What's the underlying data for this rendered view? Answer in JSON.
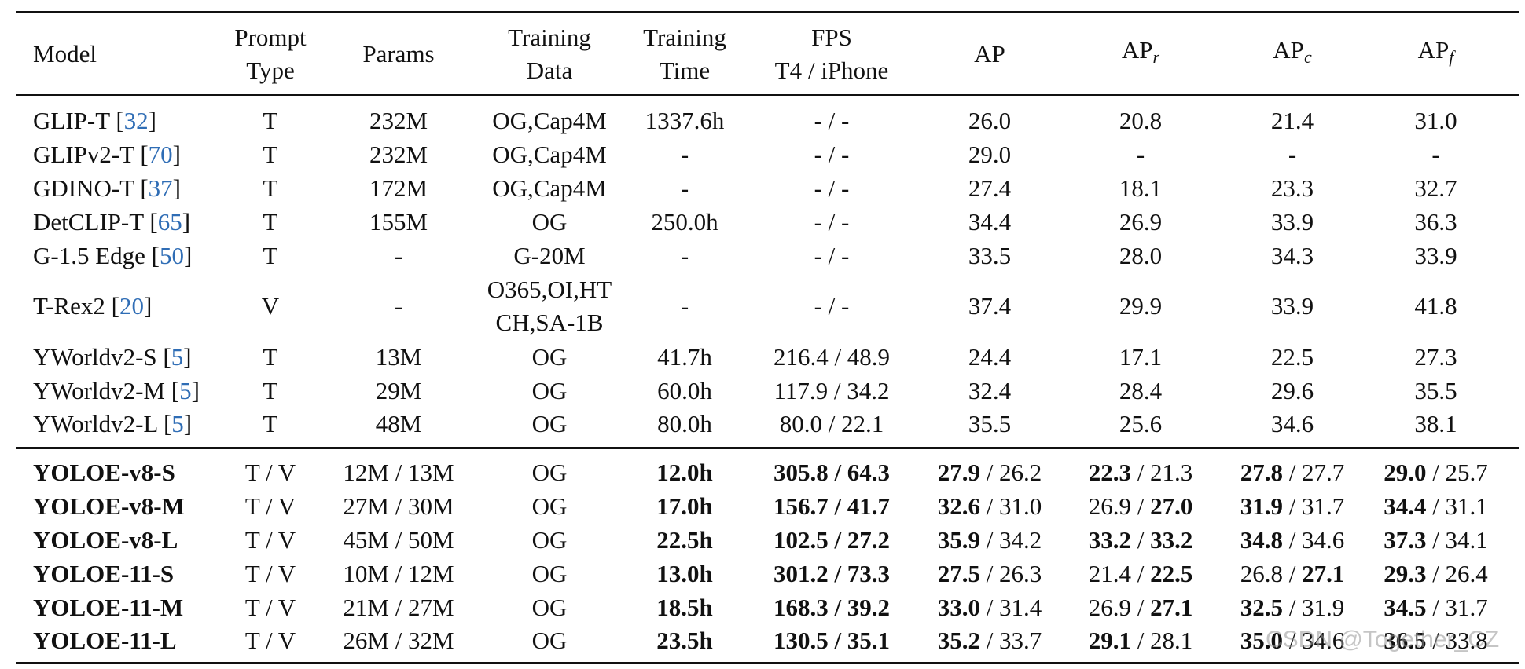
{
  "table": {
    "header": [
      "Model",
      {
        "lines": [
          "Prompt",
          "Type"
        ]
      },
      "Params",
      {
        "lines": [
          "Training",
          "Data"
        ]
      },
      {
        "lines": [
          "Training",
          "Time"
        ]
      },
      {
        "lines": [
          "FPS",
          "T4 / iPhone"
        ]
      },
      "AP",
      [
        "AP",
        {
          "text": "r",
          "style": "sub"
        }
      ],
      [
        "AP",
        {
          "text": "c",
          "style": "sub"
        }
      ],
      [
        "AP",
        {
          "text": "f",
          "style": "sub"
        }
      ]
    ],
    "groups": [
      [
        [
          [
            "GLIP-T [",
            {
              "text": "32",
              "style": "cite"
            },
            "]"
          ],
          "T",
          "232M",
          "OG,Cap4M",
          "1337.6h",
          "- / -",
          "26.0",
          "20.8",
          "21.4",
          "31.0"
        ],
        [
          [
            "GLIPv2-T [",
            {
              "text": "70",
              "style": "cite"
            },
            "]"
          ],
          "T",
          "232M",
          "OG,Cap4M",
          "-",
          "- / -",
          "29.0",
          "-",
          "-",
          "-"
        ],
        [
          [
            "GDINO-T [",
            {
              "text": "37",
              "style": "cite"
            },
            "]"
          ],
          "T",
          "172M",
          "OG,Cap4M",
          "-",
          "- / -",
          "27.4",
          "18.1",
          "23.3",
          "32.7"
        ],
        [
          [
            "DetCLIP-T [",
            {
              "text": "65",
              "style": "cite"
            },
            "]"
          ],
          "T",
          "155M",
          "OG",
          "250.0h",
          "- / -",
          "34.4",
          "26.9",
          "33.9",
          "36.3"
        ],
        [
          [
            "G-1.5 Edge [",
            {
              "text": "50",
              "style": "cite"
            },
            "]"
          ],
          "T",
          "-",
          "G-20M",
          "-",
          "- / -",
          "33.5",
          "28.0",
          "34.3",
          "33.9"
        ],
        [
          [
            "T-Rex2 [",
            {
              "text": "20",
              "style": "cite"
            },
            "]"
          ],
          "V",
          "-",
          {
            "lines": [
              "O365,OI,HT",
              "CH,SA-1B"
            ]
          },
          "-",
          "- / -",
          "37.4",
          "29.9",
          "33.9",
          "41.8"
        ],
        [
          [
            "YWorldv2-S [",
            {
              "text": "5",
              "style": "cite"
            },
            "]"
          ],
          "T",
          "13M",
          "OG",
          "41.7h",
          "216.4 / 48.9",
          "24.4",
          "17.1",
          "22.5",
          "27.3"
        ],
        [
          [
            "YWorldv2-M [",
            {
              "text": "5",
              "style": "cite"
            },
            "]"
          ],
          "T",
          "29M",
          "OG",
          "60.0h",
          "117.9 / 34.2",
          "32.4",
          "28.4",
          "29.6",
          "35.5"
        ],
        [
          [
            "YWorldv2-L [",
            {
              "text": "5",
              "style": "cite"
            },
            "]"
          ],
          "T",
          "48M",
          "OG",
          "80.0h",
          "80.0 / 22.1",
          "35.5",
          "25.6",
          "34.6",
          "38.1"
        ]
      ],
      [
        [
          [
            {
              "text": "YOLOE-v8-S",
              "style": "bold"
            }
          ],
          "T / V",
          "12M / 13M",
          "OG",
          [
            {
              "text": "12.0h",
              "style": "bold"
            }
          ],
          [
            {
              "text": "305.8 / 64.3",
              "style": "bold"
            }
          ],
          [
            {
              "text": "27.9",
              "style": "bold"
            },
            " / 26.2"
          ],
          [
            {
              "text": "22.3",
              "style": "bold"
            },
            " / 21.3"
          ],
          [
            {
              "text": "27.8",
              "style": "bold"
            },
            " / 27.7"
          ],
          [
            {
              "text": "29.0",
              "style": "bold"
            },
            " / 25.7"
          ]
        ],
        [
          [
            {
              "text": "YOLOE-v8-M",
              "style": "bold"
            }
          ],
          "T / V",
          "27M / 30M",
          "OG",
          [
            {
              "text": "17.0h",
              "style": "bold"
            }
          ],
          [
            {
              "text": "156.7 / 41.7",
              "style": "bold"
            }
          ],
          [
            {
              "text": "32.6",
              "style": "bold"
            },
            " / 31.0"
          ],
          [
            "26.9 / ",
            {
              "text": "27.0",
              "style": "bold"
            }
          ],
          [
            {
              "text": "31.9",
              "style": "bold"
            },
            " / 31.7"
          ],
          [
            {
              "text": "34.4",
              "style": "bold"
            },
            " / 31.1"
          ]
        ],
        [
          [
            {
              "text": "YOLOE-v8-L",
              "style": "bold"
            }
          ],
          "T / V",
          "45M / 50M",
          "OG",
          [
            {
              "text": "22.5h",
              "style": "bold"
            }
          ],
          [
            {
              "text": "102.5 / 27.2",
              "style": "bold"
            }
          ],
          [
            {
              "text": "35.9",
              "style": "bold"
            },
            " / 34.2"
          ],
          [
            {
              "text": "33.2",
              "style": "bold"
            },
            " / ",
            {
              "text": "33.2",
              "style": "bold"
            }
          ],
          [
            {
              "text": "34.8",
              "style": "bold"
            },
            " / 34.6"
          ],
          [
            {
              "text": "37.3",
              "style": "bold"
            },
            " / 34.1"
          ]
        ],
        [
          [
            {
              "text": "YOLOE-11-S",
              "style": "bold"
            }
          ],
          "T / V",
          "10M / 12M",
          "OG",
          [
            {
              "text": "13.0h",
              "style": "bold"
            }
          ],
          [
            {
              "text": "301.2 / 73.3",
              "style": "bold"
            }
          ],
          [
            {
              "text": "27.5",
              "style": "bold"
            },
            " / 26.3"
          ],
          [
            "21.4 / ",
            {
              "text": "22.5",
              "style": "bold"
            }
          ],
          [
            "26.8 / ",
            {
              "text": "27.1",
              "style": "bold"
            }
          ],
          [
            {
              "text": "29.3",
              "style": "bold"
            },
            " / 26.4"
          ]
        ],
        [
          [
            {
              "text": "YOLOE-11-M",
              "style": "bold"
            }
          ],
          "T / V",
          "21M / 27M",
          "OG",
          [
            {
              "text": "18.5h",
              "style": "bold"
            }
          ],
          [
            {
              "text": "168.3 / 39.2",
              "style": "bold"
            }
          ],
          [
            {
              "text": "33.0",
              "style": "bold"
            },
            " / 31.4"
          ],
          [
            "26.9 / ",
            {
              "text": "27.1",
              "style": "bold"
            }
          ],
          [
            {
              "text": "32.5",
              "style": "bold"
            },
            " / 31.9"
          ],
          [
            {
              "text": "34.5",
              "style": "bold"
            },
            " / 31.7"
          ]
        ],
        [
          [
            {
              "text": "YOLOE-11-L",
              "style": "bold"
            }
          ],
          "T / V",
          "26M / 32M",
          "OG",
          [
            {
              "text": "23.5h",
              "style": "bold"
            }
          ],
          [
            {
              "text": "130.5 / 35.1",
              "style": "bold"
            }
          ],
          [
            {
              "text": "35.2",
              "style": "bold"
            },
            " / 33.7"
          ],
          [
            {
              "text": "29.1",
              "style": "bold"
            },
            " / 28.1"
          ],
          [
            {
              "text": "35.0",
              "style": "bold"
            },
            " / 34.6"
          ],
          [
            {
              "text": "36.5",
              "style": "bold"
            },
            " / 33.8"
          ]
        ]
      ]
    ]
  },
  "watermark": "CSDN @Together_CZ"
}
